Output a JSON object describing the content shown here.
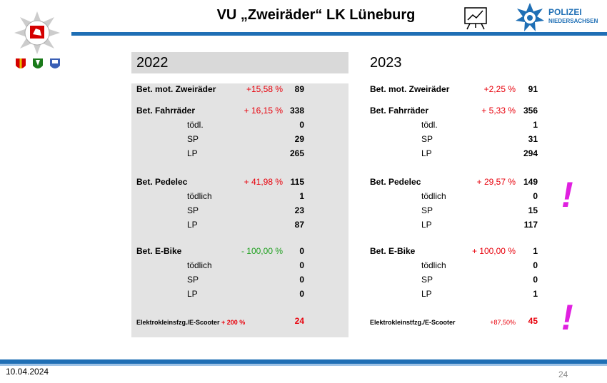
{
  "header": {
    "title": "VU „Zweiräder“ LK Lüneburg",
    "logo_line1": "POLIZEI",
    "logo_line2": "NIEDERSACHSEN"
  },
  "columns": [
    {
      "year": "2022",
      "rows": [
        {
          "label": "Bet. mot. Zweiräder",
          "change": "+15,58 %",
          "change_color": "#e8000b",
          "value": "89"
        },
        {
          "label": "Bet. Fahrräder",
          "change": "+ 16,15 %",
          "change_color": "#e8000b",
          "value": "338"
        },
        {
          "label": "tödl.",
          "value": "0"
        },
        {
          "label": "SP",
          "value": "29"
        },
        {
          "label": "LP",
          "value": "265"
        },
        {
          "label": "Bet. Pedelec",
          "change": "+ 41,98 %",
          "change_color": "#e8000b",
          "value": "115"
        },
        {
          "label": "tödlich",
          "value": "1"
        },
        {
          "label": "SP",
          "value": "23"
        },
        {
          "label": "LP",
          "value": "87"
        },
        {
          "label": "Bet. E-Bike",
          "change": "- 100,00 %",
          "change_color": "#1fa01f",
          "value": "0"
        },
        {
          "label": "tödlich",
          "value": "0"
        },
        {
          "label": "SP",
          "value": "0"
        },
        {
          "label": "LP",
          "value": "0"
        },
        {
          "label": "Elektrokleinsfzg./E-Scooter",
          "change": "+ 200 %",
          "change_color": "#e8000b",
          "value": "24",
          "value_color": "#e8000b"
        }
      ]
    },
    {
      "year": "2023",
      "rows": [
        {
          "label": "Bet. mot. Zweiräder",
          "change": "+2,25 %",
          "change_color": "#e8000b",
          "value": "91"
        },
        {
          "label": "Bet. Fahrräder",
          "change": "+ 5,33 %",
          "change_color": "#e8000b",
          "value": "356"
        },
        {
          "label": "tödl.",
          "value": "1"
        },
        {
          "label": "SP",
          "value": "31"
        },
        {
          "label": "LP",
          "value": "294"
        },
        {
          "label": "Bet. Pedelec",
          "change": "+ 29,57 %",
          "change_color": "#e8000b",
          "value": "149"
        },
        {
          "label": "tödlich",
          "value": "0"
        },
        {
          "label": "SP",
          "value": "15"
        },
        {
          "label": "LP",
          "value": "117"
        },
        {
          "label": "Bet. E-Bike",
          "change": "+ 100,00 %",
          "change_color": "#e8000b",
          "value": "1"
        },
        {
          "label": "tödlich",
          "value": "0"
        },
        {
          "label": "SP",
          "value": "0"
        },
        {
          "label": "LP",
          "value": "1"
        },
        {
          "label": "Elektrokleinstfzg./E-Scooter",
          "change": "+87,50%",
          "change_color": "#e8000b",
          "value": "45",
          "value_color": "#e8000b"
        }
      ],
      "alerts": [
        "!",
        "!"
      ]
    }
  ],
  "footer": {
    "date": "10.04.2024",
    "page": "24"
  }
}
